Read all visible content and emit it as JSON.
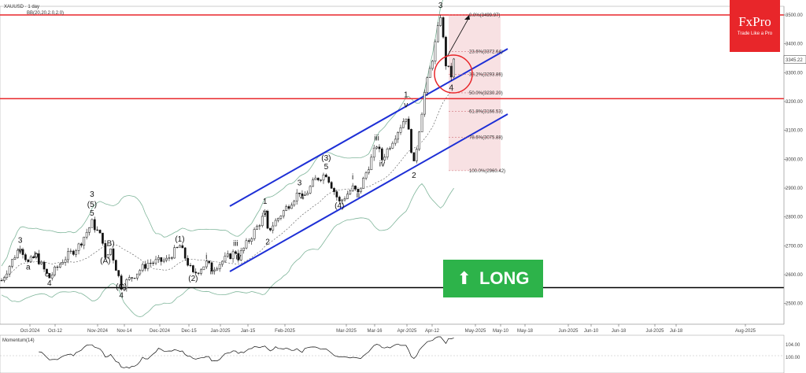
{
  "header": {
    "symbol": "XAUUSD · 1 day",
    "indicator": "BB(20,20,2.0,2.0)"
  },
  "logo": {
    "brand": "FxPro",
    "tagline": "Trade Like a Pro"
  },
  "signal": {
    "label": "LONG",
    "color": "#2db34a"
  },
  "momentum_label": "Momentum(14)",
  "chart_data": {
    "type": "candlestick",
    "title": "XAUUSD · 1 day",
    "price_axis_ticks": [
      3500,
      3400,
      3300,
      3200,
      3100,
      3000,
      2900,
      2800,
      2700,
      2600,
      2500
    ],
    "price_axis_labels": [
      "3500.00",
      "3400.00",
      "3300.00",
      "3200.00",
      "3100.00",
      "3000.00",
      "2900.00",
      "2800.00",
      "2700.00",
      "2600.00",
      "2500.00"
    ],
    "ylim": [
      2460,
      3540
    ],
    "current_price": "3345.22",
    "current_price_value": 3345.22,
    "date_axis_labels": [
      "Oct-2024",
      "Oct-12",
      "Nov-2024",
      "Nov-14",
      "Dec-2024",
      "Dec-15",
      "Jan-2025",
      "Jan-15",
      "Feb-2025",
      "Mar-2025",
      "Mar-16",
      "Apr-2025",
      "Apr-12",
      "May-2025",
      "May-10",
      "May-18",
      "Jun-2025",
      "Jun-10",
      "Jun-18",
      "Jul-2025",
      "Jul-18",
      "Aug-2025"
    ],
    "horizontal_levels": [
      {
        "value": 3500,
        "color": "#e8262a"
      },
      {
        "value": 3210,
        "color": "#e8262a"
      },
      {
        "value": 2555,
        "color": "#000000"
      }
    ],
    "fibonacci": [
      {
        "label": "0.0%(3499.97)",
        "value": 3499.97
      },
      {
        "label": "23.6%(3372.64)",
        "value": 3372.64
      },
      {
        "label": "38.2%(3293.86)",
        "value": 3293.86
      },
      {
        "label": "50.0%(3230.20)",
        "value": 3230.2
      },
      {
        "label": "61.8%(3166.53)",
        "value": 3166.53
      },
      {
        "label": "78.6%(3075.88)",
        "value": 3075.88
      },
      {
        "label": "100.0%(2960.42)",
        "value": 2960.42
      }
    ],
    "wave_labels": [
      {
        "text": "3",
        "d": 7,
        "p": 2710
      },
      {
        "text": "v",
        "d": 7,
        "p": 2675
      },
      {
        "text": "b",
        "d": 13,
        "p": 2660
      },
      {
        "text": "a",
        "d": 10,
        "p": 2618
      },
      {
        "text": "c",
        "d": 17,
        "p": 2593
      },
      {
        "text": "4",
        "d": 18,
        "p": 2562
      },
      {
        "text": "3",
        "d": 34,
        "p": 2870
      },
      {
        "text": "(5)",
        "d": 34,
        "p": 2835
      },
      {
        "text": "5",
        "d": 34,
        "p": 2805
      },
      {
        "text": "B)",
        "d": 41,
        "p": 2700
      },
      {
        "text": "(A)",
        "d": 39,
        "p": 2640
      },
      {
        "text": "(C)",
        "d": 45,
        "p": 2550
      },
      {
        "text": "4",
        "d": 45,
        "p": 2520
      },
      {
        "text": "(1)",
        "d": 67,
        "p": 2715
      },
      {
        "text": "i",
        "d": 77,
        "p": 2655
      },
      {
        "text": "(2)",
        "d": 72,
        "p": 2578
      },
      {
        "text": "ii",
        "d": 79,
        "p": 2602
      },
      {
        "text": "iii",
        "d": 88,
        "p": 2700
      },
      {
        "text": "iv",
        "d": 89,
        "p": 2653
      },
      {
        "text": "1",
        "d": 99,
        "p": 2845
      },
      {
        "text": "v",
        "d": 99,
        "p": 2808
      },
      {
        "text": "2",
        "d": 100,
        "p": 2705
      },
      {
        "text": "3",
        "d": 112,
        "p": 2910
      },
      {
        "text": "4",
        "d": 113,
        "p": 2860
      },
      {
        "text": "(3)",
        "d": 122,
        "p": 2995
      },
      {
        "text": "5",
        "d": 122,
        "p": 2965
      },
      {
        "text": "(4)",
        "d": 127,
        "p": 2830
      },
      {
        "text": "i",
        "d": 132,
        "p": 2930
      },
      {
        "text": "ii",
        "d": 134,
        "p": 2868
      },
      {
        "text": "iii",
        "d": 141,
        "p": 3065
      },
      {
        "text": "iv",
        "d": 143,
        "p": 2975
      },
      {
        "text": "1",
        "d": 152,
        "p": 3215
      },
      {
        "text": "v",
        "d": 152,
        "p": 3180
      },
      {
        "text": "2",
        "d": 155,
        "p": 2935
      },
      {
        "text": "3",
        "d": 165,
        "p": 3525
      },
      {
        "text": "4",
        "d": 169,
        "p": 3240
      }
    ]
  }
}
